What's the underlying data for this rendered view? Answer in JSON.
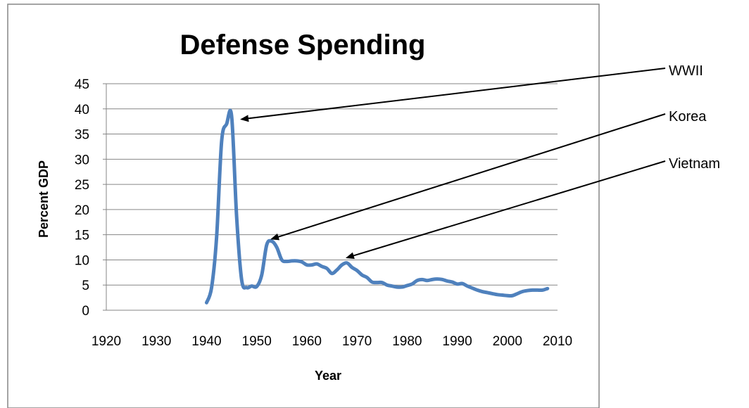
{
  "chart_data": {
    "type": "line",
    "title": "Defense Spending",
    "xlabel": "Year",
    "ylabel": "Percent GDP",
    "xlim": [
      1920,
      2010
    ],
    "ylim": [
      0,
      45
    ],
    "x_ticks": [
      "1920",
      "1930",
      "1940",
      "1950",
      "1960",
      "1970",
      "1980",
      "1990",
      "2000",
      "2010"
    ],
    "y_ticks": [
      "0",
      "5",
      "10",
      "15",
      "20",
      "25",
      "30",
      "35",
      "40",
      "45"
    ],
    "grid": "horizontal",
    "legend": "none",
    "series": [
      {
        "color": "#4F81BD",
        "x": [
          1940,
          1941,
          1942,
          1943,
          1944,
          1945,
          1946,
          1947,
          1948,
          1949,
          1950,
          1951,
          1952,
          1953,
          1954,
          1955,
          1956,
          1957,
          1958,
          1959,
          1960,
          1961,
          1962,
          1963,
          1964,
          1965,
          1966,
          1967,
          1968,
          1969,
          1970,
          1971,
          1972,
          1973,
          1974,
          1975,
          1976,
          1977,
          1978,
          1979,
          1980,
          1981,
          1982,
          1983,
          1984,
          1985,
          1986,
          1987,
          1988,
          1989,
          1990,
          1991,
          1992,
          1993,
          1994,
          1995,
          1996,
          1997,
          1998,
          1999,
          2000,
          2001,
          2002,
          2003,
          2004,
          2005,
          2006,
          2007,
          2008
        ],
        "y": [
          1.5,
          4.5,
          14.5,
          33.5,
          37.0,
          38.5,
          18.5,
          6.0,
          4.5,
          4.8,
          4.7,
          7.0,
          13.0,
          13.7,
          12.5,
          10.0,
          9.7,
          9.8,
          9.8,
          9.6,
          9.0,
          9.0,
          9.2,
          8.7,
          8.3,
          7.3,
          8.0,
          9.0,
          9.4,
          8.5,
          7.9,
          7.0,
          6.5,
          5.6,
          5.5,
          5.5,
          5.0,
          4.8,
          4.6,
          4.6,
          4.9,
          5.2,
          5.9,
          6.1,
          5.9,
          6.1,
          6.2,
          6.1,
          5.8,
          5.6,
          5.2,
          5.3,
          4.8,
          4.4,
          4.0,
          3.7,
          3.5,
          3.3,
          3.1,
          3.0,
          2.9,
          2.9,
          3.3,
          3.7,
          3.9,
          4.0,
          4.0,
          4.0,
          4.3
        ]
      }
    ],
    "annotations": [
      {
        "text": "WWII",
        "target": [
          1945,
          38.5
        ]
      },
      {
        "text": "Korea",
        "target": [
          1953,
          15.0
        ]
      },
      {
        "text": "Vietnam",
        "target": [
          1968,
          11.0
        ]
      }
    ]
  }
}
